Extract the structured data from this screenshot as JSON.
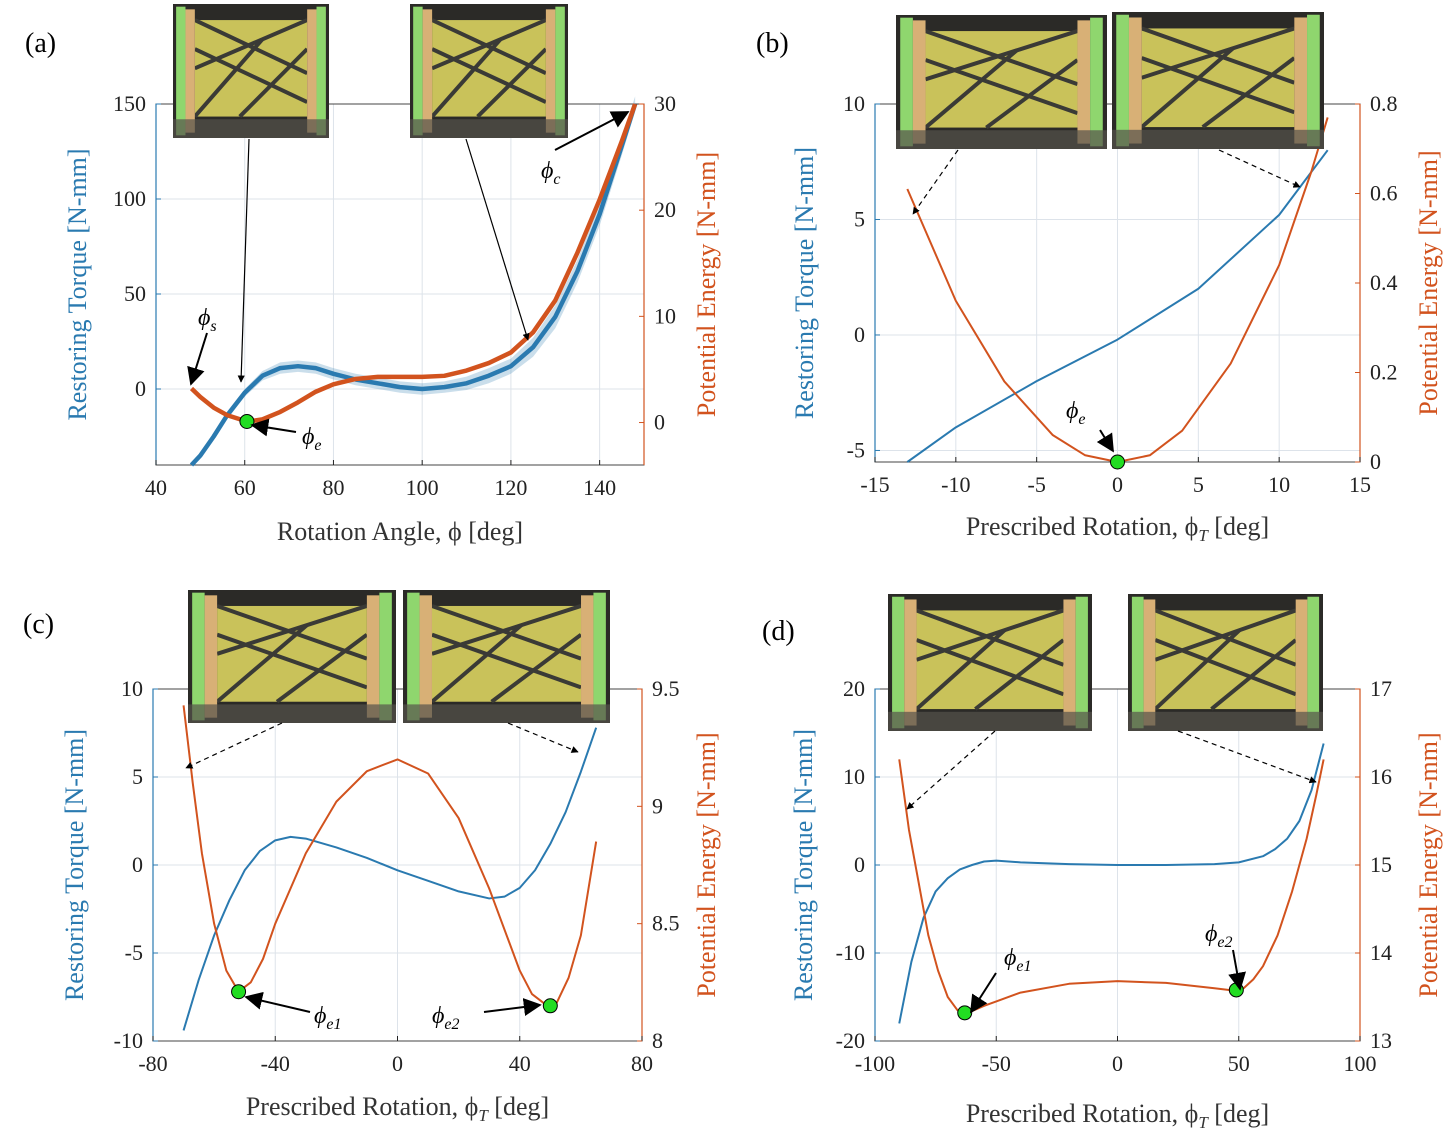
{
  "colors": {
    "torque": "#2a7ab0",
    "energy": "#d2531e",
    "marker": "#22dd22",
    "grid": "#dde3ea",
    "axis": "#222222",
    "photo_bg": "#2b2a27",
    "photo_panel": "#c9c25a",
    "photo_ring_wood": "#d8b076",
    "photo_ring_green": "#8fd66e"
  },
  "chart_data": [
    {
      "panel": "(a)",
      "type": "line",
      "xlabel": "Rotation Angle, ϕ [deg]",
      "ylabel_left": "Restoring Torque [N-mm]",
      "ylabel_right": "Potential Energy [N-mm]",
      "xlim": [
        40,
        150
      ],
      "ylim_left": [
        -40,
        150
      ],
      "ylim_right": [
        -4,
        30
      ],
      "xticks": [
        "40",
        "60",
        "80",
        "100",
        "120",
        "140"
      ],
      "yticks_left": [
        "0",
        "50",
        "100",
        "150"
      ],
      "yticks_right": [
        "0",
        "10",
        "20",
        "30"
      ],
      "series": [
        {
          "axis": "left",
          "x": [
            48,
            50,
            53,
            56,
            60,
            64,
            68,
            72,
            76,
            80,
            85,
            90,
            95,
            100,
            105,
            110,
            115,
            120,
            125,
            130,
            135,
            140,
            145,
            148
          ],
          "y": [
            -40,
            -35,
            -25,
            -14,
            -2,
            7,
            11,
            12,
            11,
            8,
            5,
            3,
            1,
            0,
            1,
            3,
            7,
            12,
            22,
            38,
            62,
            92,
            128,
            150
          ],
          "band": [
            0,
            1,
            1.5,
            2,
            2,
            2.5,
            3,
            3,
            3,
            3,
            3,
            3,
            3,
            3,
            3,
            3.5,
            4,
            4,
            5,
            6,
            6,
            6,
            5,
            4
          ]
        },
        {
          "axis": "right",
          "x": [
            48,
            50,
            53,
            56,
            59,
            61,
            64,
            68,
            72,
            76,
            80,
            85,
            90,
            95,
            100,
            105,
            110,
            115,
            120,
            125,
            130,
            135,
            140,
            145,
            148
          ],
          "y": [
            3.2,
            2.4,
            1.4,
            0.7,
            0.3,
            0.1,
            0.3,
            1,
            1.9,
            2.9,
            3.6,
            4.1,
            4.3,
            4.3,
            4.3,
            4.4,
            4.9,
            5.6,
            6.6,
            8.5,
            11.5,
            16,
            21,
            26.5,
            30
          ]
        }
      ],
      "markers": [
        {
          "axis": "right",
          "x": 60.5,
          "y": 0.1
        }
      ],
      "annotations": [
        {
          "label": "ϕ",
          "sub": "s"
        },
        {
          "label": "ϕ",
          "sub": "e"
        },
        {
          "label": "ϕ",
          "sub": "c"
        }
      ]
    },
    {
      "panel": "(b)",
      "type": "line",
      "xlabel": "Prescribed Rotation, ϕ",
      "xlabel_sub": "T",
      "xlabel_tail": " [deg]",
      "ylabel_left": "Restoring Torque [N-mm]",
      "ylabel_right": "Potential Energy [N-mm]",
      "xlim": [
        -15,
        15
      ],
      "ylim_left": [
        -5.5,
        10
      ],
      "ylim_right": [
        0,
        0.8
      ],
      "xticks": [
        "-15",
        "-10",
        "-5",
        "0",
        "5",
        "10",
        "15"
      ],
      "yticks_left": [
        "-5",
        "0",
        "5",
        "10"
      ],
      "yticks_right": [
        "0",
        "0.2",
        "0.4",
        "0.6",
        "0.8"
      ],
      "series": [
        {
          "axis": "left",
          "x": [
            -13,
            -10,
            -5,
            0,
            5,
            10,
            13
          ],
          "y": [
            -5.5,
            -4,
            -2,
            -0.2,
            2,
            5.2,
            8
          ]
        },
        {
          "axis": "right",
          "x": [
            -13,
            -10,
            -7,
            -4,
            -2,
            0,
            2,
            4,
            7,
            10,
            12,
            13
          ],
          "y": [
            0.61,
            0.36,
            0.18,
            0.06,
            0.015,
            0,
            0.015,
            0.07,
            0.22,
            0.44,
            0.65,
            0.77
          ]
        }
      ],
      "markers": [
        {
          "axis": "right",
          "x": 0,
          "y": 0
        }
      ],
      "annotations": [
        {
          "label": "ϕ",
          "sub": "e"
        }
      ]
    },
    {
      "panel": "(c)",
      "type": "line",
      "xlabel": "Prescribed Rotation, ϕ",
      "xlabel_sub": "T",
      "xlabel_tail": " [deg]",
      "ylabel_left": "Restoring Torque [N-mm]",
      "ylabel_right": "Potential Energy [N-mm]",
      "xlim": [
        -80,
        80
      ],
      "ylim_left": [
        -10,
        10
      ],
      "ylim_right": [
        8,
        9.5
      ],
      "xticks": [
        "-80",
        "-40",
        "0",
        "40",
        "80"
      ],
      "yticks_left": [
        "-10",
        "-5",
        "0",
        "5",
        "10"
      ],
      "yticks_right": [
        "8",
        "8.5",
        "9",
        "9.5"
      ],
      "series": [
        {
          "axis": "left",
          "x": [
            -70,
            -65,
            -60,
            -55,
            -50,
            -45,
            -40,
            -35,
            -30,
            -20,
            -10,
            0,
            10,
            20,
            30,
            35,
            40,
            45,
            50,
            55,
            60,
            65
          ],
          "y": [
            -9.4,
            -6.5,
            -4,
            -2,
            -0.3,
            0.8,
            1.4,
            1.6,
            1.5,
            1,
            0.4,
            -0.3,
            -0.9,
            -1.5,
            -1.9,
            -1.8,
            -1.3,
            -0.3,
            1.2,
            3,
            5.3,
            7.8
          ]
        },
        {
          "axis": "right",
          "x": [
            -70,
            -67,
            -64,
            -60,
            -56,
            -52,
            -48,
            -44,
            -40,
            -30,
            -20,
            -10,
            0,
            10,
            20,
            30,
            40,
            44,
            48,
            50,
            52,
            56,
            60,
            65
          ],
          "y": [
            9.43,
            9.1,
            8.8,
            8.5,
            8.3,
            8.21,
            8.25,
            8.35,
            8.5,
            8.8,
            9.02,
            9.15,
            9.2,
            9.14,
            8.95,
            8.65,
            8.3,
            8.2,
            8.16,
            8.15,
            8.16,
            8.27,
            8.45,
            8.85
          ]
        }
      ],
      "markers": [
        {
          "axis": "right",
          "x": -52,
          "y": 8.21
        },
        {
          "axis": "right",
          "x": 50,
          "y": 8.15
        }
      ],
      "annotations": [
        {
          "label": "ϕ",
          "sub": "e1"
        },
        {
          "label": "ϕ",
          "sub": "e2"
        }
      ]
    },
    {
      "panel": "(d)",
      "type": "line",
      "xlabel": "Prescribed Rotation, ϕ",
      "xlabel_sub": "T",
      "xlabel_tail": " [deg]",
      "ylabel_left": "Restoring Torque [N-mm]",
      "ylabel_right": "Potential Energy [N-mm]",
      "xlim": [
        -100,
        100
      ],
      "ylim_left": [
        -20,
        20
      ],
      "ylim_right": [
        13,
        17
      ],
      "xticks": [
        "-100",
        "-50",
        "0",
        "50",
        "100"
      ],
      "yticks_left": [
        "-20",
        "-10",
        "0",
        "10",
        "20"
      ],
      "yticks_right": [
        "13",
        "14",
        "15",
        "16",
        "17"
      ],
      "series": [
        {
          "axis": "left",
          "x": [
            -90,
            -85,
            -80,
            -75,
            -70,
            -65,
            -60,
            -55,
            -50,
            -40,
            -20,
            0,
            20,
            40,
            50,
            60,
            65,
            70,
            75,
            80,
            85
          ],
          "y": [
            -18,
            -11,
            -6,
            -3,
            -1.5,
            -0.5,
            0,
            0.4,
            0.5,
            0.3,
            0.1,
            0,
            0,
            0.1,
            0.3,
            1,
            1.8,
            3,
            5,
            8.5,
            13.8
          ]
        },
        {
          "axis": "right",
          "x": [
            -90,
            -86,
            -82,
            -78,
            -74,
            -70,
            -66,
            -63,
            -60,
            -55,
            -50,
            -40,
            -20,
            0,
            20,
            40,
            46,
            49,
            52,
            56,
            60,
            66,
            72,
            78,
            82,
            85
          ],
          "y": [
            16.2,
            15.4,
            14.8,
            14.2,
            13.8,
            13.5,
            13.35,
            13.32,
            13.34,
            13.4,
            13.45,
            13.55,
            13.65,
            13.68,
            13.66,
            13.6,
            13.58,
            13.58,
            13.6,
            13.7,
            13.85,
            14.2,
            14.7,
            15.3,
            15.8,
            16.2
          ]
        }
      ],
      "markers": [
        {
          "axis": "right",
          "x": -63,
          "y": 13.32
        },
        {
          "axis": "right",
          "x": 49,
          "y": 13.58
        }
      ],
      "annotations": [
        {
          "label": "ϕ",
          "sub": "e1"
        },
        {
          "label": "ϕ",
          "sub": "e2"
        }
      ]
    }
  ],
  "photos": [
    {
      "panel": 0,
      "name": "photo-a-1"
    },
    {
      "panel": 0,
      "name": "photo-a-2"
    },
    {
      "panel": 1,
      "name": "photo-b-1"
    },
    {
      "panel": 1,
      "name": "photo-b-2"
    },
    {
      "panel": 2,
      "name": "photo-c-1"
    },
    {
      "panel": 2,
      "name": "photo-c-2"
    },
    {
      "panel": 3,
      "name": "photo-d-1"
    },
    {
      "panel": 3,
      "name": "photo-d-2"
    }
  ]
}
